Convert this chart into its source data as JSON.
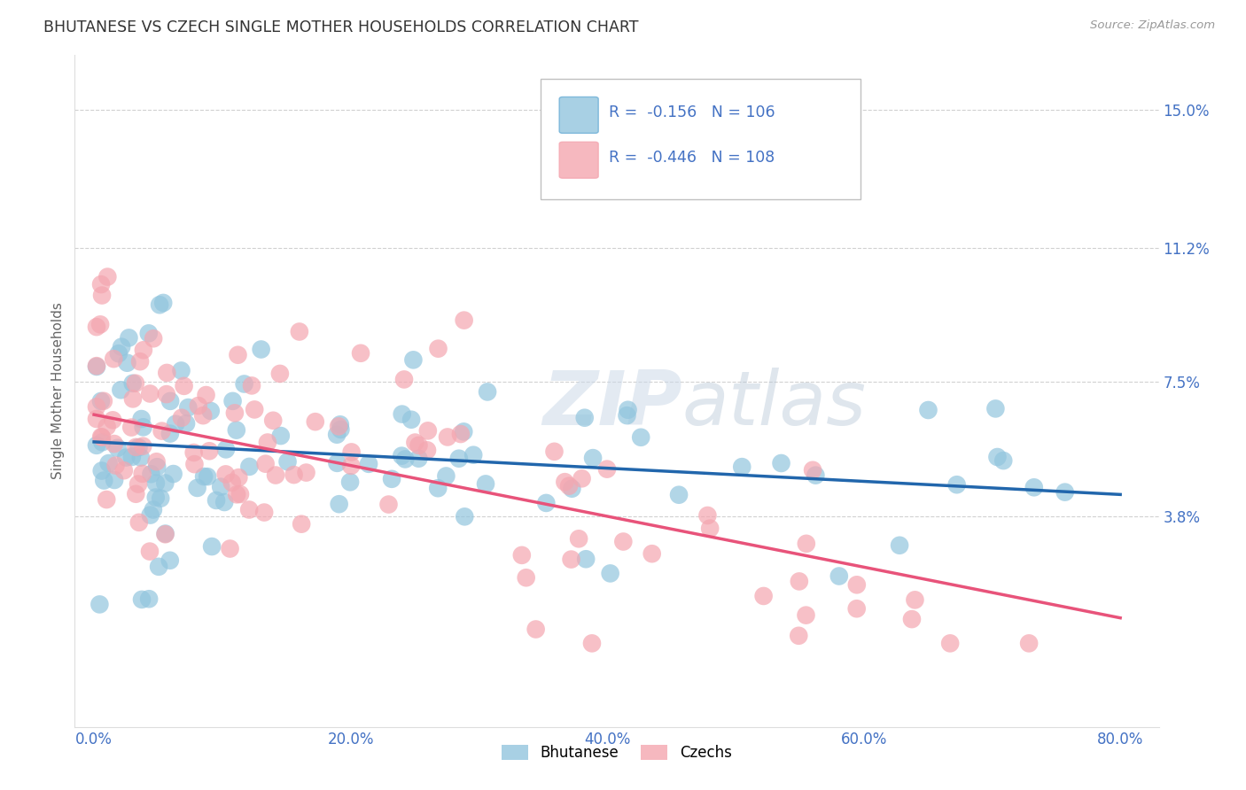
{
  "title": "BHUTANESE VS CZECH SINGLE MOTHER HOUSEHOLDS CORRELATION CHART",
  "source": "Source: ZipAtlas.com",
  "ylabel": "Single Mother Households",
  "xlabel_ticks": [
    "0.0%",
    "20.0%",
    "40.0%",
    "60.0%",
    "80.0%"
  ],
  "xlabel_tick_vals": [
    0.0,
    0.2,
    0.4,
    0.6,
    0.8
  ],
  "ytick_vals": [
    0.038,
    0.075,
    0.112,
    0.15
  ],
  "ytick_labels": [
    "3.8%",
    "7.5%",
    "11.2%",
    "15.0%"
  ],
  "xlim": [
    -0.015,
    0.83
  ],
  "ylim": [
    -0.02,
    0.165
  ],
  "legend1_r": "-0.156",
  "legend1_n": "106",
  "legend2_r": "-0.446",
  "legend2_n": "108",
  "bhutanese_color": "#92c5de",
  "czechs_color": "#f4a6b0",
  "trend_blue": "#2166ac",
  "trend_pink": "#e8537a",
  "watermark": "ZIPatlas",
  "legend_label1": "Bhutanese",
  "legend_label2": "Czechs",
  "background_color": "#ffffff",
  "grid_color": "#cccccc",
  "title_color": "#333333",
  "axis_color": "#4472c4",
  "bhutanese_trend_x": [
    0.0,
    0.8
  ],
  "bhutanese_trend_y": [
    0.0585,
    0.044
  ],
  "czechs_trend_x": [
    0.0,
    0.8
  ],
  "czechs_trend_y": [
    0.066,
    0.01
  ]
}
